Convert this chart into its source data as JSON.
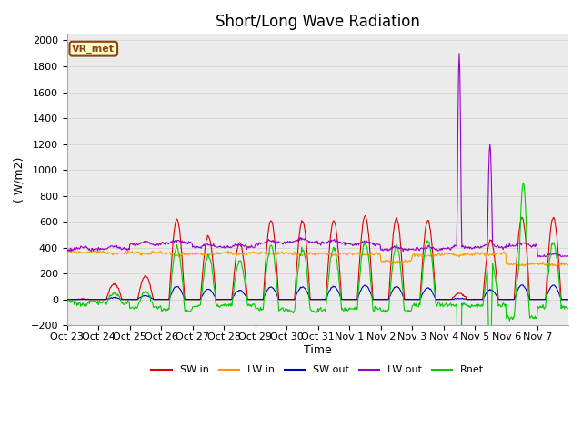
{
  "title": "Short/Long Wave Radiation",
  "ylabel": "( W/m2)",
  "xlabel": "Time",
  "ylim": [
    -200,
    2050
  ],
  "tick_labels": [
    "Oct 23",
    "Oct 24",
    "Oct 25",
    "Oct 26",
    "Oct 27",
    "Oct 28",
    "Oct 29",
    "Oct 30",
    "Oct 31",
    "Nov 1",
    "Nov 2",
    "Nov 3",
    "Nov 4",
    "Nov 5",
    "Nov 6",
    "Nov 7"
  ],
  "grid_color": "#d8d8d8",
  "plot_bg": "#ebebeb",
  "annotation_text": "VR_met",
  "annotation_bg": "#ffffcc",
  "annotation_border": "#8b4513",
  "colors": {
    "SW_in": "#dd0000",
    "LW_in": "#ff9900",
    "SW_out": "#0000bb",
    "LW_out": "#9900cc",
    "Rnet": "#00cc00"
  },
  "legend_labels": [
    "SW in",
    "LW in",
    "SW out",
    "LW out",
    "Rnet"
  ],
  "title_fontsize": 12,
  "axis_fontsize": 9,
  "tick_fontsize": 8
}
